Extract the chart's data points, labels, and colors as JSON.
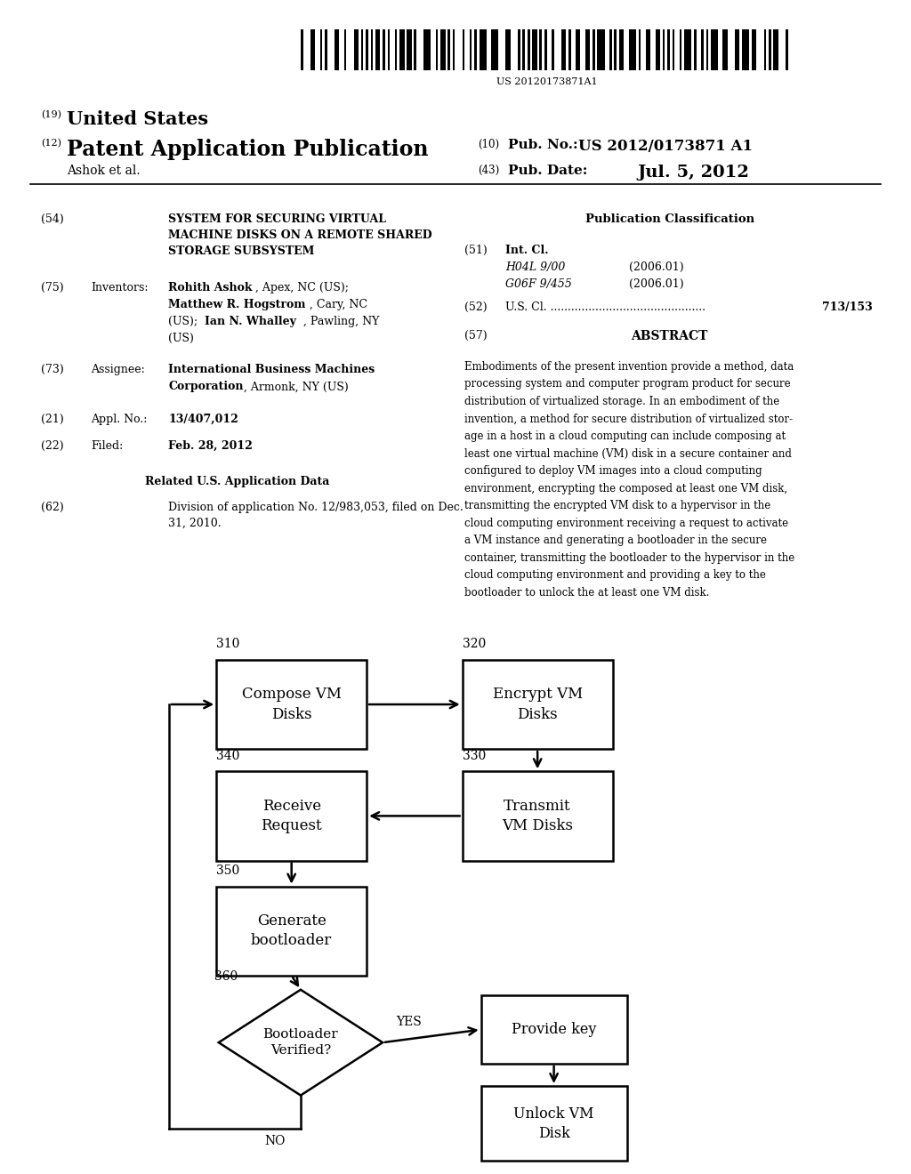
{
  "bg_color": "#ffffff",
  "barcode_text": "US 20120173871A1",
  "field54_text": "SYSTEM FOR SECURING VIRTUAL\nMACHINE DISKS ON A REMOTE SHARED\nSTORAGE SUBSYSTEM",
  "field75_key": "Inventors:",
  "field75_text_bold": "Rohith Ashok",
  "field75_text_rest1": ", Apex, NC (US);",
  "field75_text_bold2": "Matthew R. Hogstrom",
  "field75_text_rest2": ", Cary, NC",
  "field75_text_rest3": "(US); ",
  "field75_text_bold3": "Ian N. Whalley",
  "field75_text_rest4": ", Pawling, NY",
  "field75_text_rest5": "(US)",
  "field73_key": "Assignee:",
  "field73_bold": "International Business Machines",
  "field73_rest": "Corporation",
  "field73_rest2": ", Armonk, NY (US)",
  "field21_key": "Appl. No.:",
  "field21_text": "13/407,012",
  "field22_key": "Filed:",
  "field22_text": "Feb. 28, 2012",
  "related_header": "Related U.S. Application Data",
  "field62_text": "Division of application No. 12/983,053, filed on Dec.\n31, 2010.",
  "pub_class_header": "Publication Classification",
  "field51_key": "Int. Cl.",
  "field51_line1": "H04L 9/00",
  "field51_line1_year": "(2006.01)",
  "field51_line2": "G06F 9/455",
  "field51_line2_year": "(2006.01)",
  "field52_dots": "U.S. Cl. .............................................",
  "field52_value": "713/153",
  "field57_key": "ABSTRACT",
  "abstract_lines": [
    "Embodiments of the present invention provide a method, data",
    "processing system and computer program product for secure",
    "distribution of virtualized storage. In an embodiment of the",
    "invention, a method for secure distribution of virtualized stor-",
    "age in a host in a cloud computing can include composing at",
    "least one virtual machine (VM) disk in a secure container and",
    "configured to deploy VM images into a cloud computing",
    "environment, encrypting the composed at least one VM disk,",
    "transmitting the encrypted VM disk to a hypervisor in the",
    "cloud computing environment receiving a request to activate",
    "a VM instance and generating a bootloader in the secure",
    "container, transmitting the bootloader to the hypervisor in the",
    "cloud computing environment and providing a key to the",
    "bootloader to unlock the at least one VM disk."
  ]
}
